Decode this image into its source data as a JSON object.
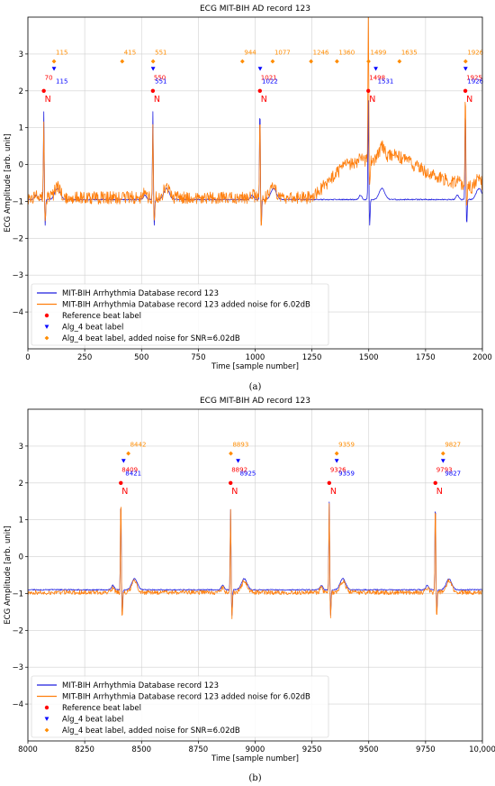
{
  "chart_data": [
    {
      "type": "line",
      "title": "ECG MIT-BIH AD record 123",
      "xlabel": "Time [sample number]",
      "ylabel": "ECG Amplitude [arb. unit]",
      "xlim": [
        0,
        2000
      ],
      "ylim": [
        -5,
        4
      ],
      "xticks": [
        "0",
        "250",
        "500",
        "750",
        "1000",
        "1250",
        "1500",
        "1750",
        "2000"
      ],
      "xtick_values": [
        0,
        250,
        500,
        750,
        1000,
        1250,
        1500,
        1750,
        2000
      ],
      "yticks": [
        "−4",
        "−3",
        "−2",
        "−1",
        "0",
        "1",
        "2",
        "3"
      ],
      "ytick_values": [
        -4,
        -3,
        -2,
        -1,
        0,
        1,
        2,
        3
      ],
      "grid": true,
      "legend_position": "lower-left",
      "caption": "(a)",
      "series": [
        {
          "name": "MIT-BIH Arrhythmia Database record 123",
          "color": "#1f1fdf",
          "beats": [
            70,
            550,
            1021,
            1498,
            1925
          ],
          "r_amps": [
            1.2,
            1.2,
            1.3,
            1.35,
            1.3
          ],
          "baseline": -0.95
        },
        {
          "name": "MIT-BIH Arrhythmia Database record 123 added noise for 6.02dB",
          "color": "#ff7f0e",
          "beats": [
            70,
            550,
            1021,
            1498,
            1925
          ],
          "r_amps": [
            1.0,
            1.0,
            1.15,
            2.2,
            1.35
          ],
          "baseline": -0.9,
          "drift": [
            [
              0,
              0
            ],
            [
              1250,
              0
            ],
            [
              1400,
              0.9
            ],
            [
              1620,
              1.15
            ],
            [
              1800,
              0.55
            ],
            [
              2000,
              0.2
            ]
          ]
        }
      ],
      "markers": [
        {
          "name": "Reference beat label",
          "color": "#ff0000",
          "shape": "circle",
          "y": 2.0,
          "label_y": 2.3,
          "x": [
            70,
            550,
            1021,
            1498,
            1925
          ],
          "labels": [
            "70",
            "550",
            "1021",
            "1498",
            "1925"
          ],
          "symbol": "N"
        },
        {
          "name": "Alg_4 beat label",
          "color": "#0000ff",
          "shape": "triangle",
          "y": 2.6,
          "label_y": 2.35,
          "x": [
            115,
            551,
            1022,
            1531,
            1926
          ],
          "labels": [
            "115",
            "551",
            "1022",
            "1531",
            "1926"
          ]
        },
        {
          "name": "Alg_4 beat label, added noise for SNR=6.02dB",
          "color": "#ff8c00",
          "shape": "star",
          "y": 2.8,
          "label_y": 2.98,
          "x": [
            115,
            415,
            551,
            944,
            1077,
            1246,
            1360,
            1499,
            1635,
            1926
          ],
          "labels": [
            "115",
            "415",
            "551",
            "944",
            "1077",
            "1246",
            "1360",
            "1499",
            "1635",
            "1926"
          ]
        }
      ]
    },
    {
      "type": "line",
      "title": "ECG MIT-BIH AD record 123",
      "xlabel": "Time [sample number]",
      "ylabel": "ECG Amplitude [arb. unit]",
      "xlim": [
        8000,
        10000
      ],
      "ylim": [
        -5,
        4
      ],
      "xticks": [
        "8000",
        "8250",
        "8500",
        "8750",
        "9000",
        "9250",
        "9500",
        "9750",
        "10,000"
      ],
      "xtick_values": [
        8000,
        8250,
        8500,
        8750,
        9000,
        9250,
        9500,
        9750,
        10000
      ],
      "yticks": [
        "−4",
        "−3",
        "−2",
        "−1",
        "0",
        "1",
        "2",
        "3"
      ],
      "ytick_values": [
        -4,
        -3,
        -2,
        -1,
        0,
        1,
        2,
        3
      ],
      "grid": true,
      "legend_position": "lower-left",
      "caption": "(b)",
      "series": [
        {
          "name": "MIT-BIH Arrhythmia Database record 123",
          "color": "#1f1fdf",
          "beats": [
            8409,
            8892,
            9326,
            9793
          ],
          "r_amps": [
            1.3,
            1.1,
            1.2,
            1.25
          ],
          "baseline": -0.9
        },
        {
          "name": "MIT-BIH Arrhythmia Database record 123 added noise for 6.02dB",
          "color": "#ff7f0e",
          "beats": [
            8409,
            8892,
            9326,
            9793
          ],
          "r_amps": [
            1.35,
            1.1,
            1.2,
            1.3
          ],
          "baseline": -0.97
        }
      ],
      "markers": [
        {
          "name": "Reference beat label",
          "color": "#ff0000",
          "shape": "circle",
          "y": 2.0,
          "label_y": 2.3,
          "x": [
            8409,
            8892,
            9326,
            9793
          ],
          "labels": [
            "8409",
            "8892",
            "9326",
            "9793"
          ],
          "symbol": "N"
        },
        {
          "name": "Alg_4 beat label",
          "color": "#0000ff",
          "shape": "triangle",
          "y": 2.6,
          "label_y": 2.35,
          "x": [
            8421,
            8925,
            9359,
            9827
          ],
          "labels": [
            "8421",
            "8925",
            "9359",
            "9827"
          ]
        },
        {
          "name": "Alg_4 beat label, added noise for SNR=6.02dB",
          "color": "#ff8c00",
          "shape": "star",
          "y": 2.8,
          "label_y": 2.98,
          "x": [
            8442,
            8893,
            9359,
            9827
          ],
          "labels": [
            "8442",
            "8893",
            "9359",
            "9827"
          ]
        }
      ]
    }
  ]
}
